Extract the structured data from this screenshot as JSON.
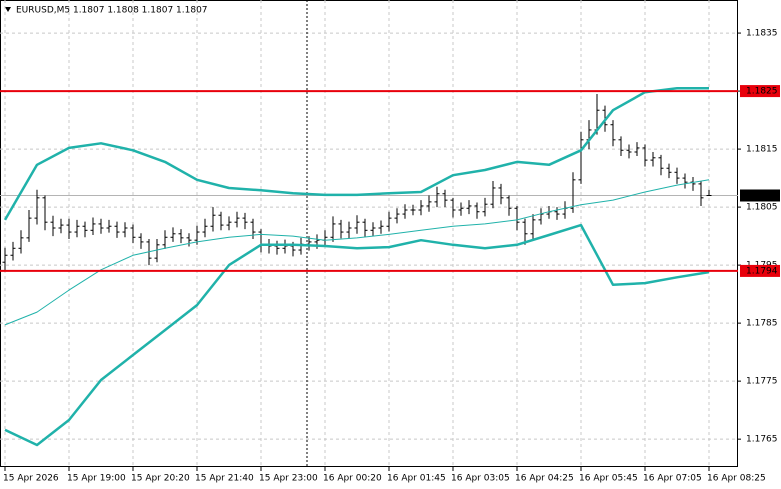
{
  "chart_data": {
    "type": "ohlc",
    "title": "EURUSD,M5  1.1807 1.1808 1.1807 1.1807",
    "bar_color": "#000000",
    "open": [
      1.17955,
      1.17967,
      1.17979,
      1.17997,
      1.18031,
      1.18066,
      1.18024,
      1.18014,
      1.18019,
      1.18007,
      1.18017,
      1.1801,
      1.18021,
      1.18014,
      1.18017,
      1.18007,
      1.18014,
      1.17998,
      1.1799,
      1.17962,
      1.17985,
      1.17998,
      1.18004,
      1.17997,
      1.17993,
      1.18007,
      1.18017,
      1.18036,
      1.18019,
      1.18024,
      1.18031,
      1.18024,
      1.18007,
      1.17985,
      1.17983,
      1.17979,
      1.17983,
      1.17976,
      1.17986,
      1.1799,
      1.17993,
      1.17998,
      1.18021,
      1.18007,
      1.18014,
      1.18024,
      1.1801,
      1.18014,
      1.18017,
      1.18031,
      1.18038,
      1.18045,
      1.18045,
      1.18052,
      1.18059,
      1.18073,
      1.18062,
      1.18045,
      1.18048,
      1.18052,
      1.18042,
      1.18055,
      1.18083,
      1.18066,
      1.18048,
      1.18024,
      1.18004,
      1.18028,
      1.18038,
      1.18042,
      1.18038,
      1.18048,
      1.18097,
      1.18166,
      1.18183,
      1.18217,
      1.18192,
      1.18166,
      1.18148,
      1.18145,
      1.18152,
      1.18131,
      1.18135,
      1.18117,
      1.1811,
      1.181,
      1.18093,
      1.1809,
      1.1807
    ],
    "high": [
      1.1798,
      1.1799,
      1.1801,
      1.18045,
      1.1808,
      1.1807,
      1.18035,
      1.1803,
      1.1803,
      1.18028,
      1.18025,
      1.18032,
      1.1803,
      1.18028,
      1.18025,
      1.18024,
      1.1802,
      1.18005,
      1.17995,
      1.17995,
      1.1801,
      1.18015,
      1.18012,
      1.18005,
      1.18018,
      1.1803,
      1.1805,
      1.18042,
      1.18034,
      1.18042,
      1.1804,
      1.1803,
      1.18012,
      1.17995,
      1.17992,
      1.17994,
      1.1799,
      1.17997,
      1.18,
      1.18003,
      1.1801,
      1.18034,
      1.18028,
      1.18025,
      1.18036,
      1.1803,
      1.18024,
      1.18027,
      1.18042,
      1.18048,
      1.18055,
      1.18054,
      1.18062,
      1.1807,
      1.18085,
      1.1808,
      1.18066,
      1.18058,
      1.18062,
      1.18058,
      1.18066,
      1.18095,
      1.1809,
      1.1807,
      1.18052,
      1.1803,
      1.18038,
      1.18048,
      1.18052,
      1.1805,
      1.1806,
      1.1811,
      1.1818,
      1.182,
      1.18245,
      1.18225,
      1.182,
      1.18172,
      1.18158,
      1.18162,
      1.18158,
      1.18145,
      1.1814,
      1.18125,
      1.18118,
      1.18108,
      1.18102,
      1.18095,
      1.1808
    ],
    "low": [
      1.1794,
      1.17958,
      1.1797,
      1.1799,
      1.1802,
      1.1801,
      1.18,
      1.18005,
      1.17995,
      1.17998,
      1.17998,
      1.18002,
      1.18004,
      1.18006,
      1.17997,
      1.17998,
      1.17988,
      1.17978,
      1.1795,
      1.17955,
      1.17978,
      1.1799,
      1.17988,
      1.17982,
      1.17985,
      1.17998,
      1.18008,
      1.1801,
      1.1801,
      1.18015,
      1.18012,
      1.17995,
      1.17972,
      1.1797,
      1.17968,
      1.1797,
      1.17965,
      1.17968,
      1.17975,
      1.17978,
      1.17982,
      1.1799,
      1.17996,
      1.17996,
      1.18004,
      1.17998,
      1.18,
      1.18004,
      1.18008,
      1.18022,
      1.1803,
      1.18036,
      1.18036,
      1.18042,
      1.1805,
      1.1805,
      1.18032,
      1.18035,
      1.18038,
      1.1803,
      1.18034,
      1.18048,
      1.18055,
      1.18035,
      1.1801,
      1.17985,
      1.17995,
      1.1802,
      1.1803,
      1.18028,
      1.1803,
      1.1804,
      1.1809,
      1.1815,
      1.18175,
      1.1818,
      1.18155,
      1.18138,
      1.18134,
      1.18138,
      1.1812,
      1.1812,
      1.18105,
      1.181,
      1.1809,
      1.18082,
      1.18078,
      1.18052,
      1.1807
    ],
    "close": [
      1.17967,
      1.17979,
      1.17997,
      1.18031,
      1.18066,
      1.18024,
      1.18014,
      1.18019,
      1.18007,
      1.18017,
      1.1801,
      1.18021,
      1.18014,
      1.18017,
      1.18007,
      1.18014,
      1.17998,
      1.1799,
      1.17962,
      1.17985,
      1.17998,
      1.18004,
      1.17997,
      1.17993,
      1.18007,
      1.18017,
      1.18036,
      1.18019,
      1.18024,
      1.18031,
      1.18024,
      1.18007,
      1.17985,
      1.17983,
      1.17979,
      1.17983,
      1.17976,
      1.17986,
      1.1799,
      1.17993,
      1.17998,
      1.18021,
      1.18007,
      1.18014,
      1.18024,
      1.1801,
      1.18014,
      1.18017,
      1.18031,
      1.18038,
      1.18045,
      1.18045,
      1.18052,
      1.18059,
      1.18073,
      1.18062,
      1.18045,
      1.18048,
      1.18052,
      1.18042,
      1.18055,
      1.18083,
      1.18066,
      1.18048,
      1.18024,
      1.18004,
      1.18028,
      1.18038,
      1.18042,
      1.18038,
      1.18048,
      1.18097,
      1.18166,
      1.18183,
      1.18217,
      1.18192,
      1.18166,
      1.18148,
      1.18145,
      1.18152,
      1.18131,
      1.18135,
      1.18117,
      1.1811,
      1.181,
      1.18093,
      1.1809,
      1.18066,
      1.1807
    ],
    "series": [
      {
        "color": "#20b2aa",
        "width": 2.5,
        "x": [
          0,
          4,
          8,
          12,
          16,
          20,
          24,
          28,
          32,
          36,
          40,
          44,
          48,
          52,
          56,
          60,
          64,
          68,
          72,
          76,
          80,
          84,
          88
        ],
        "values": [
          1.18028,
          1.18123,
          1.18152,
          1.1816,
          1.18148,
          1.18128,
          1.18097,
          1.18083,
          1.18079,
          1.18074,
          1.18071,
          1.18071,
          1.18074,
          1.18076,
          1.18105,
          1.18114,
          1.18128,
          1.18123,
          1.18148,
          1.18217,
          1.18248,
          1.18255,
          1.18255
        ]
      },
      {
        "color": "#20b2aa",
        "width": 1,
        "x": [
          0,
          4,
          8,
          12,
          16,
          20,
          24,
          28,
          32,
          36,
          40,
          44,
          48,
          52,
          56,
          60,
          64,
          68,
          72,
          76,
          80,
          84,
          88
        ],
        "values": [
          1.17847,
          1.17869,
          1.17907,
          1.17942,
          1.17967,
          1.17979,
          1.1799,
          1.17998,
          1.18003,
          1.18,
          1.17993,
          1.17997,
          1.18003,
          1.1801,
          1.18017,
          1.18021,
          1.18028,
          1.18042,
          1.18054,
          1.18062,
          1.18076,
          1.18088,
          1.18097
        ]
      },
      {
        "color": "#20b2aa",
        "width": 2.5,
        "x": [
          0,
          4,
          8,
          12,
          16,
          20,
          24,
          28,
          32,
          36,
          40,
          44,
          48,
          52,
          56,
          60,
          64,
          68,
          72,
          76,
          80,
          84,
          88
        ],
        "values": [
          1.17666,
          1.1764,
          1.17683,
          1.17752,
          1.17795,
          1.17838,
          1.17881,
          1.1795,
          1.17985,
          1.17985,
          1.17983,
          1.17979,
          1.17981,
          1.17993,
          1.17985,
          1.17979,
          1.17985,
          1.18002,
          1.18019,
          1.17916,
          1.17919,
          1.17929,
          1.17938
        ]
      }
    ],
    "levels": [
      1.1825,
      1.1794
    ],
    "level_color": "#e8000b",
    "price": 1.1807,
    "vline": 37.75,
    "xlim": [
      -0.625,
      91.625
    ],
    "xticks": [
      {
        "value": 0,
        "label": "15 Apr 2026"
      },
      {
        "value": 8,
        "label": "15 Apr 19:00"
      },
      {
        "value": 16,
        "label": "15 Apr 20:20"
      },
      {
        "value": 24,
        "label": "15 Apr 21:40"
      },
      {
        "value": 32,
        "label": "15 Apr 23:00"
      },
      {
        "value": 40,
        "label": "16 Apr 00:20"
      },
      {
        "value": 48,
        "label": "16 Apr 01:45"
      },
      {
        "value": 56,
        "label": "16 Apr 03:05"
      },
      {
        "value": 64,
        "label": "16 Apr 04:25"
      },
      {
        "value": 72,
        "label": "16 Apr 05:45"
      },
      {
        "value": 80,
        "label": "16 Apr 07:05"
      },
      {
        "value": 88,
        "label": "16 Apr 08:25"
      }
    ],
    "ylim": [
      1.17602,
      1.18407
    ],
    "yticks": [
      1.1765,
      1.1775,
      1.1785,
      1.1795,
      1.1805,
      1.1815,
      1.1825,
      1.1835
    ],
    "grid": true
  }
}
